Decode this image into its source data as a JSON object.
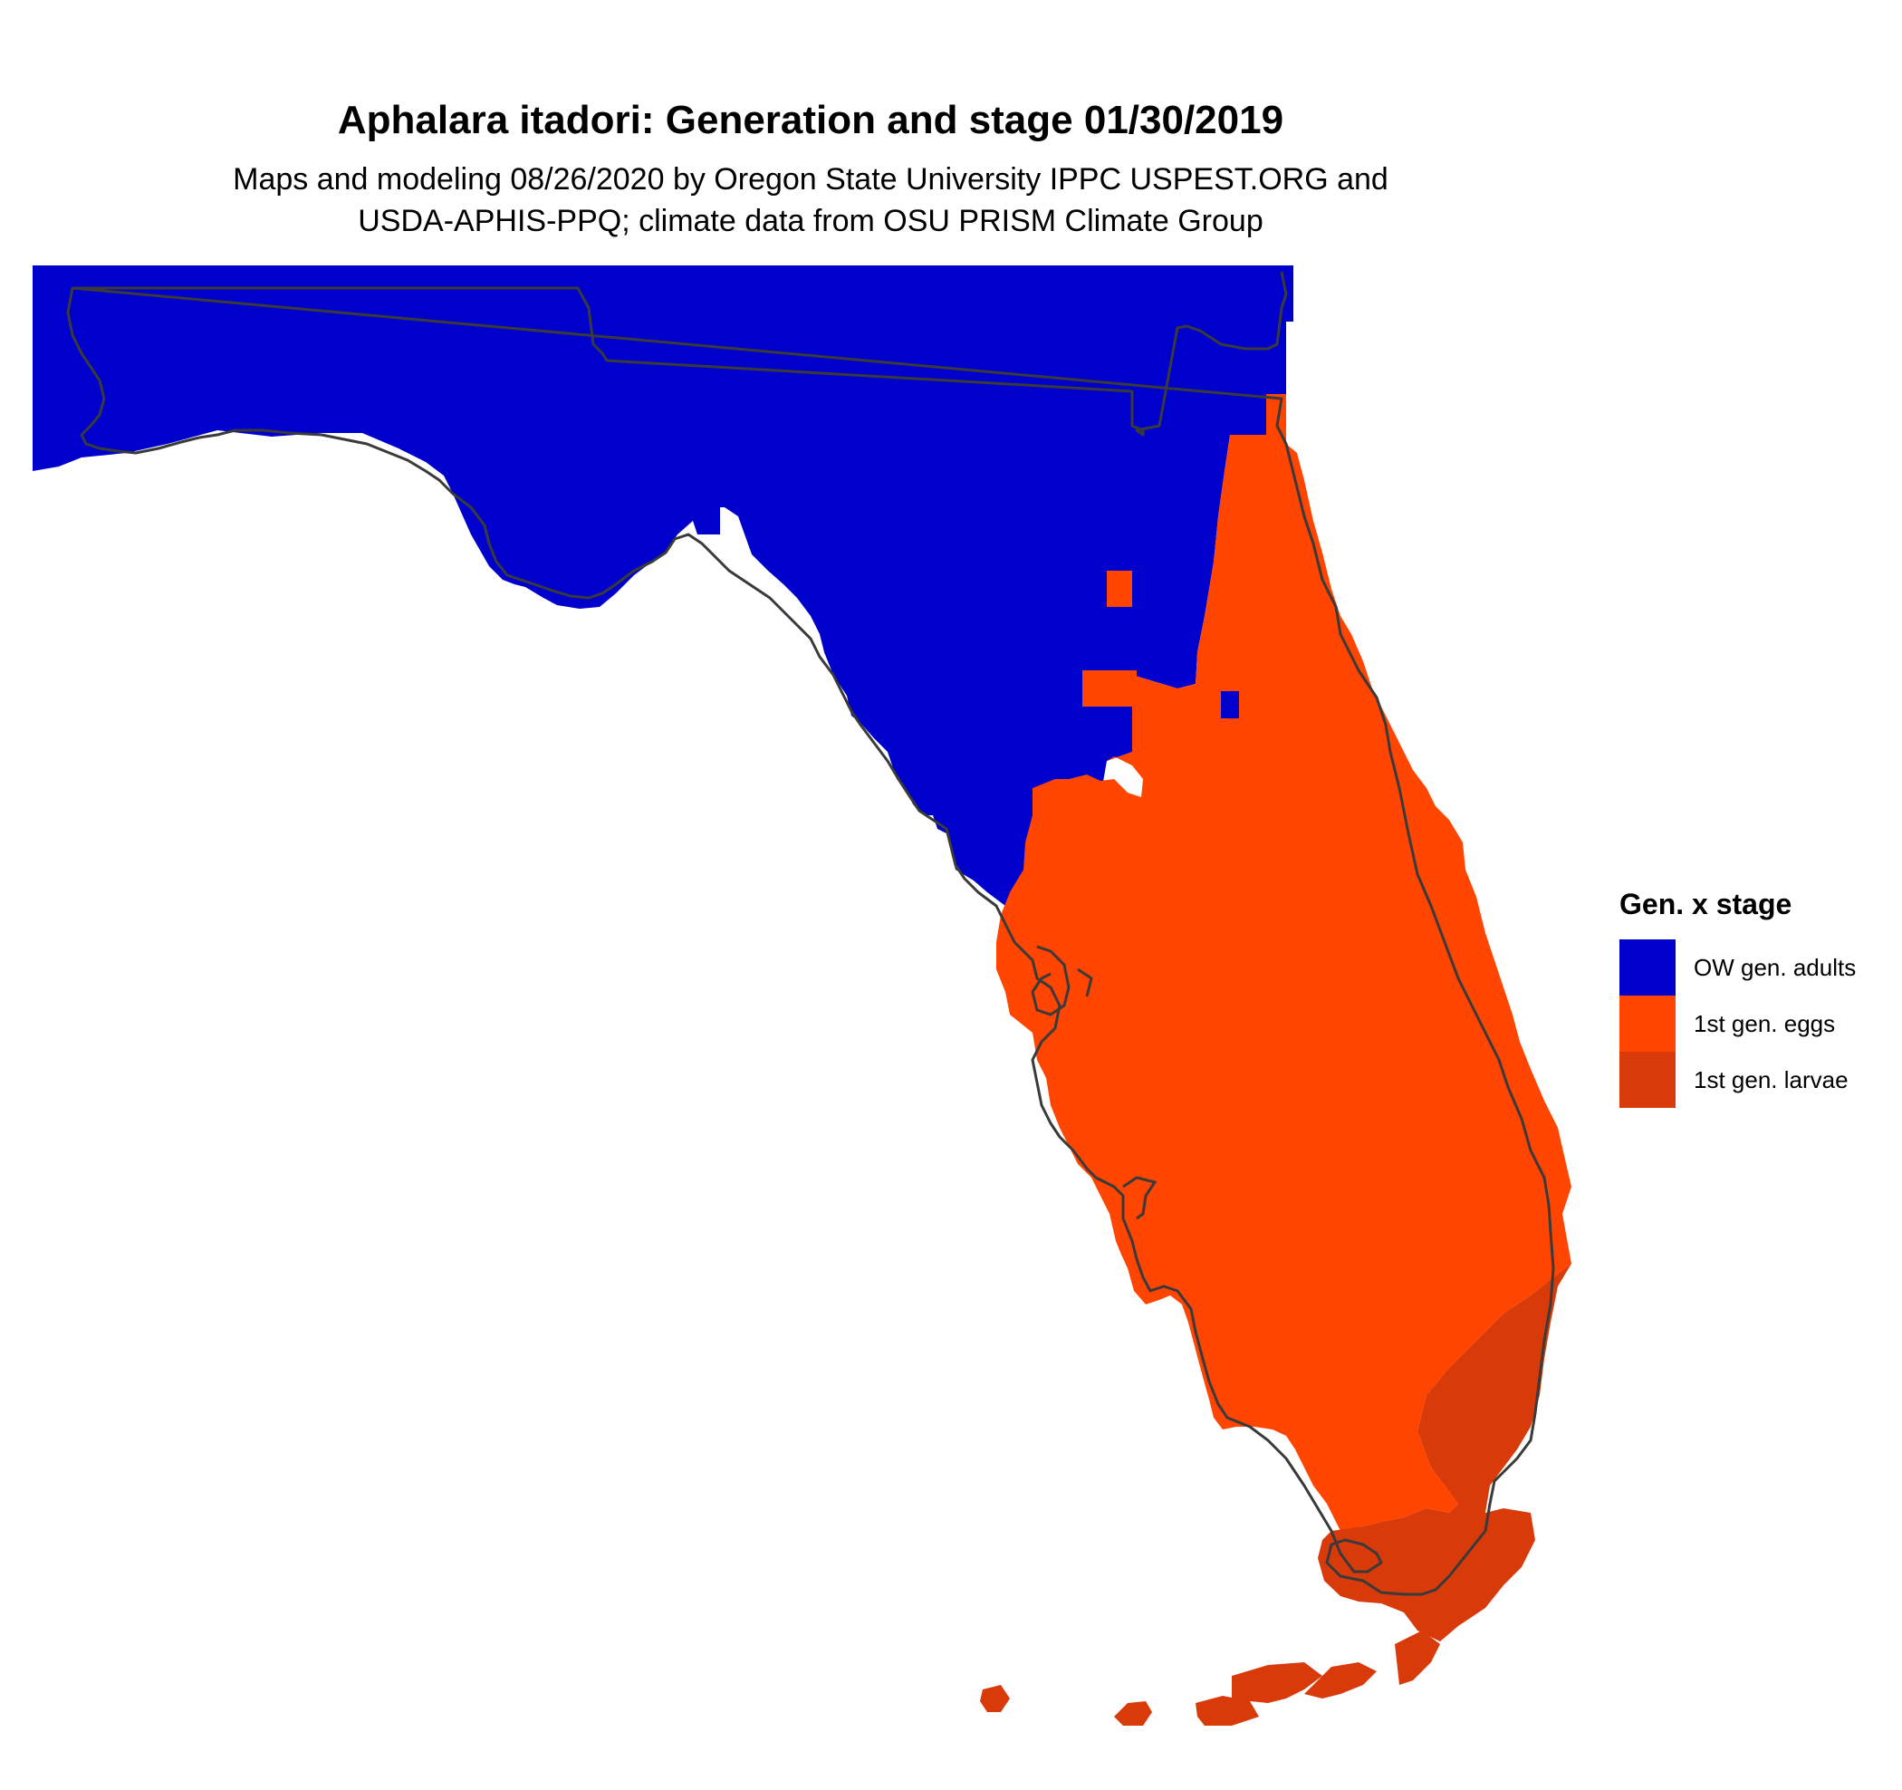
{
  "title": "Aphalara itadori: Generation and stage 01/30/2019",
  "subtitle_line1": "Maps and modeling 08/26/2020 by Oregon State University IPPC USPEST.ORG and",
  "subtitle_line2": "USDA-APHIS-PPQ; climate data from OSU PRISM Climate Group",
  "legend": {
    "title": "Gen. x stage",
    "items": [
      {
        "label": "OW gen. adults",
        "color": "#0000CC"
      },
      {
        "label": "1st gen. eggs",
        "color": "#FF4500"
      },
      {
        "label": "1st gen. larvae",
        "color": "#D93A0A"
      }
    ]
  },
  "colors": {
    "adults": "#0000CC",
    "eggs": "#FF4500",
    "larvae": "#D93A0A",
    "border": "#3a3a3a"
  }
}
